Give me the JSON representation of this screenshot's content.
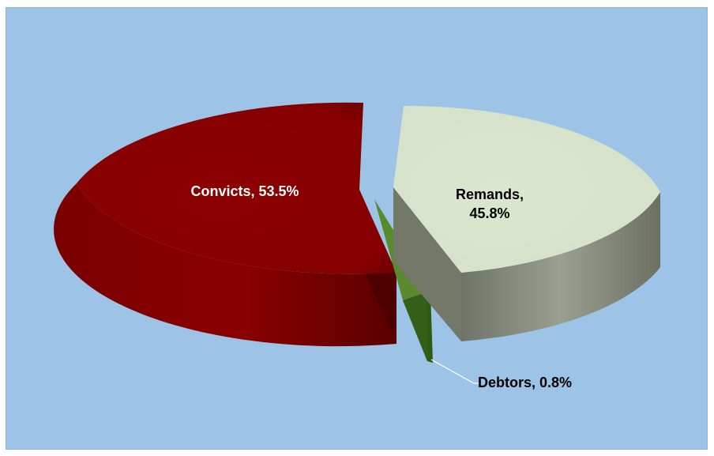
{
  "chart_data": {
    "type": "pie",
    "style": "3d exploded",
    "title": "",
    "slices": [
      {
        "category": "Convicts",
        "value": 53.5,
        "label": "Convicts, 53.5%",
        "color": "#8b0000",
        "label_color": "#ffffff"
      },
      {
        "category": "Debtors",
        "value": 0.8,
        "label": "Debtors, 0.8%",
        "color": "#4f7a28",
        "label_color": "#000000"
      },
      {
        "category": "Remands",
        "value": 45.8,
        "label": "Remands,\n45.8%",
        "color": "#dbe6cf",
        "label_color": "#000000"
      }
    ],
    "legend": "none",
    "background_color": "#9dc3e6"
  }
}
